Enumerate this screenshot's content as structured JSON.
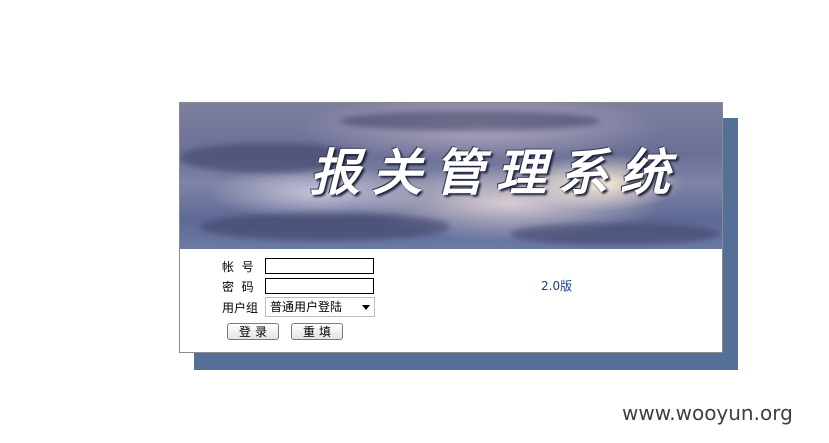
{
  "banner": {
    "title": "报关管理系统"
  },
  "form": {
    "account_label": "帐  号",
    "password_label": "密  码",
    "group_label": "用户组",
    "account_value": "",
    "password_value": "",
    "group_selected": "普通用户登陆",
    "login_button": "登录",
    "reset_button": "重填"
  },
  "version": "2.0版",
  "watermark": "www.wooyun.org"
}
